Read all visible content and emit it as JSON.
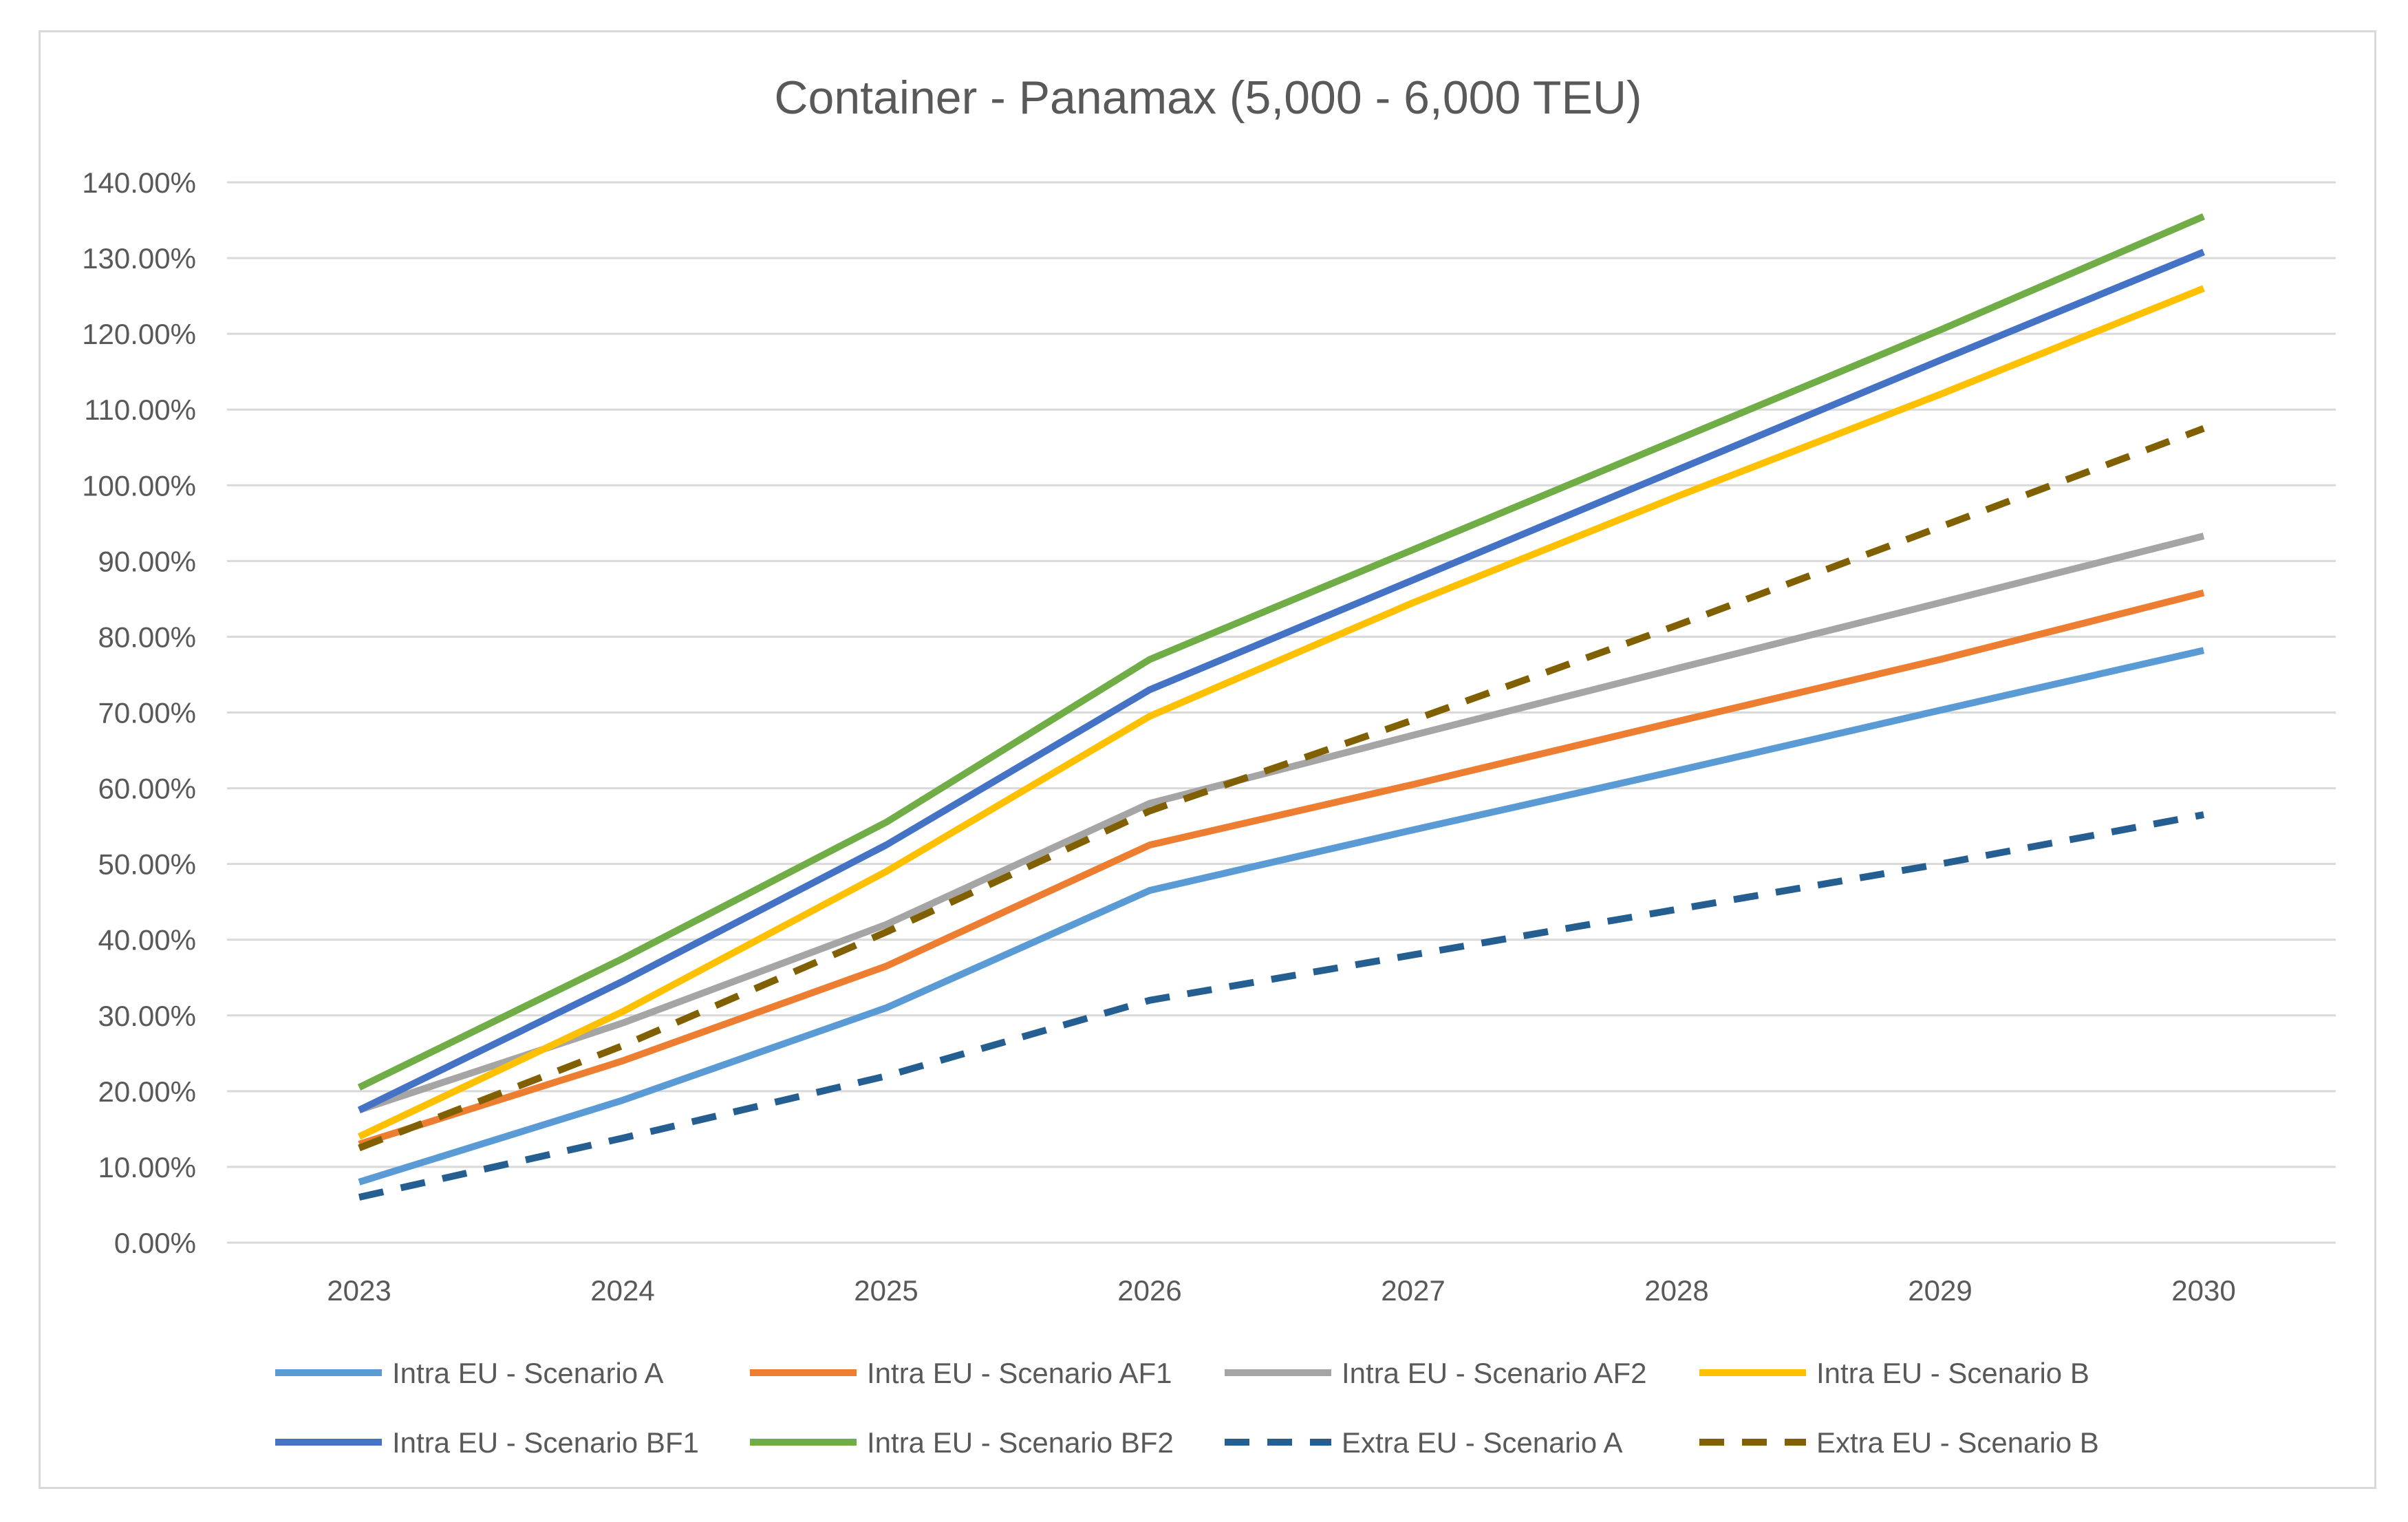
{
  "chart_data": {
    "type": "line",
    "title": "Container - Panamax (5,000 - 6,000 TEU)",
    "xlabel": "",
    "ylabel": "",
    "x": [
      "2023",
      "2024",
      "2025",
      "2026",
      "2027",
      "2028",
      "2029",
      "2030"
    ],
    "ylim": [
      0,
      140
    ],
    "yticks": [
      "0.00%",
      "10.00%",
      "20.00%",
      "30.00%",
      "40.00%",
      "50.00%",
      "60.00%",
      "70.00%",
      "80.00%",
      "90.00%",
      "100.00%",
      "110.00%",
      "120.00%",
      "130.00%",
      "140.00%"
    ],
    "grid": true,
    "legend_position": "bottom",
    "series": [
      {
        "name": "Intra EU - Scenario A",
        "color": "#5b9bd5",
        "dash": false,
        "values": [
          8.0,
          18.8,
          31.0,
          46.5,
          54.5,
          62.3,
          70.3,
          78.2
        ]
      },
      {
        "name": "Intra EU - Scenario AF1",
        "color": "#ed7d31",
        "dash": false,
        "values": [
          13.0,
          24.0,
          36.5,
          52.5,
          60.5,
          68.8,
          77.0,
          85.8
        ]
      },
      {
        "name": "Intra EU - Scenario AF2",
        "color": "#a5a5a5",
        "dash": false,
        "values": [
          17.5,
          29.0,
          42.0,
          58.0,
          67.0,
          75.8,
          84.5,
          93.3
        ]
      },
      {
        "name": "Intra EU - Scenario B",
        "color": "#ffc000",
        "dash": false,
        "values": [
          14.0,
          30.5,
          49.0,
          69.5,
          84.5,
          98.5,
          112.0,
          126.0
        ]
      },
      {
        "name": "Intra EU - Scenario BF1",
        "color": "#4472c4",
        "dash": false,
        "values": [
          17.5,
          34.5,
          52.5,
          73.0,
          87.5,
          102.0,
          116.5,
          130.8
        ]
      },
      {
        "name": "Intra EU - Scenario BF2",
        "color": "#70ad47",
        "dash": false,
        "values": [
          20.5,
          37.5,
          55.5,
          77.0,
          91.5,
          106.0,
          120.5,
          135.5
        ]
      },
      {
        "name": "Extra EU - Scenario A",
        "color": "#255e91",
        "dash": true,
        "values": [
          6.0,
          13.8,
          22.0,
          32.0,
          38.0,
          44.0,
          50.0,
          56.5
        ]
      },
      {
        "name": "Extra EU - Scenario B",
        "color": "#806000",
        "dash": true,
        "values": [
          12.5,
          26.0,
          41.0,
          57.0,
          69.0,
          81.5,
          94.5,
          107.5
        ]
      }
    ]
  }
}
